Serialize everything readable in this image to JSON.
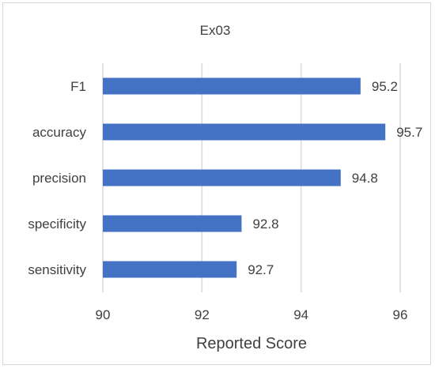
{
  "chart_data": {
    "type": "bar",
    "orientation": "horizontal",
    "title": "Ex03",
    "xlabel": "Reported Score",
    "ylabel": "",
    "categories": [
      "F1",
      "accuracy",
      "precision",
      "specificity",
      "sensitivity"
    ],
    "values": [
      95.2,
      95.7,
      94.8,
      92.8,
      92.7
    ],
    "data_labels": [
      "95.2",
      "95.7",
      "94.8",
      "92.8",
      "92.7"
    ],
    "xlim": [
      90,
      96
    ],
    "xticks": [
      90,
      92,
      94,
      96
    ],
    "xtick_labels": [
      "90",
      "92",
      "94",
      "96"
    ],
    "grid": "vertical",
    "legend": "none",
    "bar_color": "#4472C4",
    "grid_color": "#d9d9d9",
    "text_color": "#404040"
  }
}
